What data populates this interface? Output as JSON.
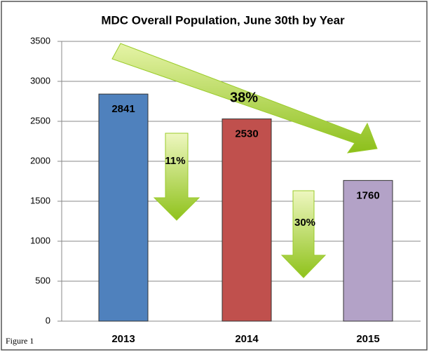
{
  "chart_data": {
    "type": "bar",
    "title": "MDC Overall Population, June 30th by Year",
    "categories": [
      "2013",
      "2014",
      "2015"
    ],
    "values": [
      2841,
      2530,
      1760
    ],
    "colors": [
      "#4f81bd",
      "#c0504d",
      "#b3a2c7"
    ],
    "ylim": [
      0,
      3500
    ],
    "yticks": [
      0,
      500,
      1000,
      1500,
      2000,
      2500,
      3000,
      3500
    ],
    "grid": true,
    "annotations": [
      "11%",
      "30%",
      "38%"
    ]
  },
  "caption": "Figure 1"
}
